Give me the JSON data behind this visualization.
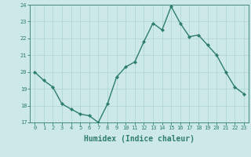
{
  "x": [
    0,
    1,
    2,
    3,
    4,
    5,
    6,
    7,
    8,
    9,
    10,
    11,
    12,
    13,
    14,
    15,
    16,
    17,
    18,
    19,
    20,
    21,
    22,
    23
  ],
  "y": [
    20.0,
    19.5,
    19.1,
    18.1,
    17.8,
    17.5,
    17.4,
    17.0,
    18.1,
    19.7,
    20.3,
    20.6,
    21.8,
    22.9,
    22.5,
    23.9,
    22.9,
    22.1,
    22.2,
    21.6,
    21.0,
    20.0,
    19.1,
    18.7
  ],
  "line_color": "#2e7d6e",
  "marker": "D",
  "marker_size": 2.0,
  "bg_color": "#cce9e7",
  "grid_color": "#aad4d0",
  "xlabel": "Humidex (Indice chaleur)",
  "ylim": [
    17,
    24
  ],
  "xlim": [
    -0.5,
    23.5
  ],
  "yticks": [
    17,
    18,
    19,
    20,
    21,
    22,
    23,
    24
  ],
  "xticks": [
    0,
    1,
    2,
    3,
    4,
    5,
    6,
    7,
    8,
    9,
    10,
    11,
    12,
    13,
    14,
    15,
    16,
    17,
    18,
    19,
    20,
    21,
    22,
    23
  ],
  "tick_label_size": 5.0,
  "xlabel_size": 7.0,
  "line_width": 1.0
}
